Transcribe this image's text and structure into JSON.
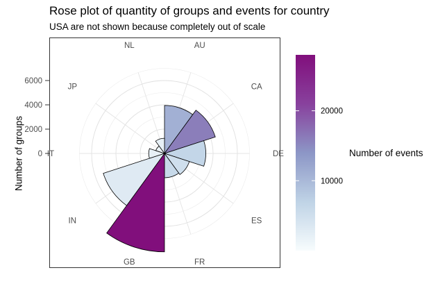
{
  "chart_data": {
    "type": "rose",
    "title": "Rose plot of quantity of groups and events for country",
    "subtitle": "USA are not shown because completely out of scale",
    "ylabel": "Number of groups",
    "legend_title": "Number of events",
    "categories": [
      "AU",
      "CA",
      "DE",
      "ES",
      "FR",
      "GB",
      "IN",
      "IT",
      "JP",
      "NL"
    ],
    "groups": [
      3950,
      4400,
      3400,
      2150,
      2000,
      8100,
      5300,
      1300,
      750,
      1250
    ],
    "events": [
      11000,
      16000,
      6500,
      5000,
      6000,
      28000,
      3000,
      2000,
      1500,
      2000
    ],
    "radial_ticks": [
      0,
      2000,
      4000,
      6000
    ],
    "radial_tick_labels": [
      "0",
      "2000",
      "4000",
      "6000"
    ],
    "color_scale": {
      "min": 0,
      "max": 28000,
      "colors": [
        "#f7fcfd",
        "#bfd3e6",
        "#8c96c6",
        "#88419d",
        "#810f7c"
      ],
      "ticks": [
        10000,
        20000
      ],
      "tick_labels": [
        "10000",
        "20000"
      ]
    },
    "grid": true
  }
}
